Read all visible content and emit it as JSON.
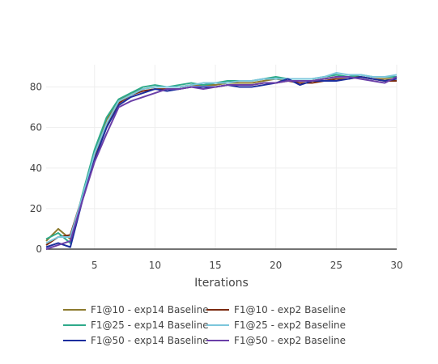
{
  "chart_data": {
    "type": "line",
    "title": "",
    "xlabel": "Iterations",
    "ylabel": "",
    "xlim": [
      1,
      30
    ],
    "ylim": [
      0,
      91
    ],
    "xticks": [
      5,
      10,
      15,
      20,
      25,
      30
    ],
    "yticks": [
      0,
      20,
      40,
      60,
      80
    ],
    "grid": true,
    "legend_position": "bottom",
    "x": [
      1,
      2,
      3,
      4,
      5,
      6,
      7,
      8,
      9,
      10,
      11,
      12,
      13,
      14,
      15,
      16,
      17,
      18,
      19,
      20,
      21,
      22,
      23,
      24,
      25,
      26,
      27,
      28,
      29,
      30
    ],
    "series": [
      {
        "name": "F1@10 - exp14 Baseline",
        "color": "#8c7a2e",
        "values": [
          4,
          10,
          5,
          26,
          48,
          64,
          73,
          77,
          79,
          80,
          80,
          80,
          81,
          81,
          81,
          82,
          82,
          82,
          83,
          84,
          83,
          83,
          83,
          84,
          85,
          85,
          85,
          84,
          84,
          84
        ]
      },
      {
        "name": "F1@10 - exp2 Baseline",
        "color": "#7b2a10",
        "values": [
          2,
          6,
          7,
          26,
          46,
          61,
          72,
          76,
          78,
          79,
          79,
          79,
          80,
          80,
          80,
          81,
          81,
          81,
          82,
          82,
          83,
          82,
          82,
          83,
          84,
          84,
          85,
          84,
          83,
          83
        ]
      },
      {
        "name": "F1@25 - exp14 Baseline",
        "color": "#2eaa8a",
        "values": [
          5,
          8,
          3,
          27,
          49,
          65,
          74,
          77,
          80,
          81,
          80,
          81,
          82,
          81,
          82,
          83,
          83,
          83,
          84,
          85,
          84,
          84,
          84,
          85,
          86,
          85,
          86,
          85,
          85,
          85
        ]
      },
      {
        "name": "F1@25 - exp2 Baseline",
        "color": "#7cc6dc",
        "values": [
          3,
          6,
          6,
          26,
          47,
          62,
          73,
          76,
          79,
          80,
          80,
          80,
          81,
          82,
          82,
          82,
          83,
          83,
          84,
          84,
          84,
          84,
          84,
          85,
          87,
          86,
          86,
          85,
          85,
          86
        ]
      },
      {
        "name": "F1@50 - exp14 Baseline",
        "color": "#1c2e9e",
        "values": [
          1,
          3,
          1,
          24,
          44,
          60,
          71,
          75,
          77,
          79,
          78,
          79,
          80,
          80,
          80,
          81,
          80,
          80,
          81,
          82,
          84,
          81,
          83,
          83,
          83,
          84,
          85,
          84,
          83,
          84
        ]
      },
      {
        "name": "F1@50 - exp2 Baseline",
        "color": "#6a3fa8",
        "values": [
          0,
          2,
          4,
          24,
          43,
          57,
          70,
          73,
          75,
          77,
          79,
          79,
          80,
          79,
          80,
          81,
          81,
          81,
          82,
          82,
          83,
          83,
          83,
          84,
          85,
          85,
          84,
          83,
          82,
          85
        ]
      }
    ]
  }
}
